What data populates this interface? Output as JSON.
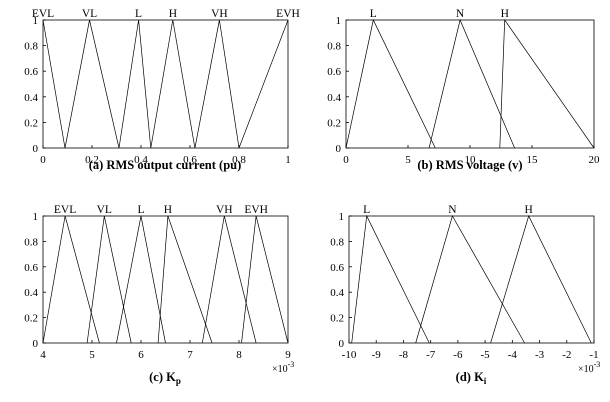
{
  "chart_data": [
    {
      "type": "line",
      "caption": "(a) RMS output current (pu)",
      "xlim": [
        0,
        1
      ],
      "ylim": [
        0,
        1
      ],
      "x_ticks": [
        "0",
        "0.2",
        "0.4",
        "0.6",
        "0.8",
        "1"
      ],
      "x_tick_values": [
        0,
        0.2,
        0.4,
        0.6,
        0.8,
        1
      ],
      "y_ticks": [
        "0",
        "0.2",
        "0.4",
        "0.6",
        "0.8",
        "1"
      ],
      "y_tick_values": [
        0,
        0.2,
        0.4,
        0.6,
        0.8,
        1
      ],
      "x_exponent": "",
      "series": [
        {
          "name": "EVL",
          "points": [
            [
              0,
              1
            ],
            [
              0.09,
              0
            ]
          ]
        },
        {
          "name": "VL",
          "points": [
            [
              0.09,
              0
            ],
            [
              0.19,
              1
            ],
            [
              0.31,
              0
            ]
          ]
        },
        {
          "name": "L",
          "points": [
            [
              0.31,
              0
            ],
            [
              0.39,
              1
            ],
            [
              0.44,
              0
            ]
          ]
        },
        {
          "name": "H",
          "points": [
            [
              0.44,
              0
            ],
            [
              0.53,
              1
            ],
            [
              0.62,
              0
            ]
          ]
        },
        {
          "name": "VH",
          "points": [
            [
              0.62,
              0
            ],
            [
              0.72,
              1
            ],
            [
              0.8,
              0
            ]
          ]
        },
        {
          "name": "EVH",
          "points": [
            [
              0.8,
              0
            ],
            [
              1,
              1
            ]
          ]
        }
      ]
    },
    {
      "type": "line",
      "caption": "(b) RMS voltage (v)",
      "xlim": [
        0,
        20
      ],
      "ylim": [
        0,
        1
      ],
      "x_ticks": [
        "0",
        "5",
        "10",
        "15",
        "20"
      ],
      "x_tick_values": [
        0,
        5,
        10,
        15,
        20
      ],
      "y_ticks": [
        "0",
        "0.2",
        "0.4",
        "0.6",
        "0.8",
        "1"
      ],
      "y_tick_values": [
        0,
        0.2,
        0.4,
        0.6,
        0.8,
        1
      ],
      "x_exponent": "",
      "series": [
        {
          "name": "L",
          "points": [
            [
              0,
              0
            ],
            [
              2.2,
              1
            ],
            [
              7.2,
              0
            ]
          ]
        },
        {
          "name": "N",
          "points": [
            [
              6.7,
              0
            ],
            [
              9.2,
              1
            ],
            [
              13.6,
              0
            ]
          ]
        },
        {
          "name": "H",
          "points": [
            [
              12.4,
              0
            ],
            [
              12.8,
              1
            ],
            [
              20,
              0
            ]
          ]
        }
      ]
    },
    {
      "type": "line",
      "caption": "(c) Kp",
      "xlim": [
        4,
        9
      ],
      "ylim": [
        0,
        1
      ],
      "x_ticks": [
        "4",
        "5",
        "6",
        "7",
        "8",
        "9"
      ],
      "x_tick_values": [
        4,
        5,
        6,
        7,
        8,
        9
      ],
      "y_ticks": [
        "0",
        "0.2",
        "0.4",
        "0.6",
        "0.8",
        "1"
      ],
      "y_tick_values": [
        0,
        0.2,
        0.4,
        0.6,
        0.8,
        1
      ],
      "x_exponent": "×10",
      "x_exponent_power": "-3",
      "series": [
        {
          "name": "EVL",
          "points": [
            [
              4,
              0
            ],
            [
              4.45,
              1
            ],
            [
              5.15,
              0
            ]
          ]
        },
        {
          "name": "VL",
          "points": [
            [
              4.9,
              0
            ],
            [
              5.25,
              1
            ],
            [
              5.8,
              0
            ]
          ]
        },
        {
          "name": "L",
          "points": [
            [
              5.5,
              0
            ],
            [
              6,
              1
            ],
            [
              6.5,
              0
            ]
          ]
        },
        {
          "name": "H",
          "points": [
            [
              6.35,
              0
            ],
            [
              6.55,
              1
            ],
            [
              7.45,
              0
            ]
          ]
        },
        {
          "name": "VH",
          "points": [
            [
              7.25,
              0
            ],
            [
              7.7,
              1
            ],
            [
              8.35,
              0
            ]
          ]
        },
        {
          "name": "EVH",
          "points": [
            [
              8.05,
              0
            ],
            [
              8.35,
              1
            ],
            [
              9,
              0
            ]
          ]
        }
      ]
    },
    {
      "type": "line",
      "caption": "(d) Ki",
      "xlim": [
        -10,
        -1
      ],
      "ylim": [
        0,
        1
      ],
      "x_ticks": [
        "-10",
        "-9",
        "-8",
        "-7",
        "-6",
        "-5",
        "-4",
        "-3",
        "-2",
        "-1"
      ],
      "x_tick_values": [
        -10,
        -9,
        -8,
        -7,
        -6,
        -5,
        -4,
        -3,
        -2,
        -1
      ],
      "y_ticks": [
        "0",
        "0.2",
        "0.4",
        "0.6",
        "0.8",
        "1"
      ],
      "y_tick_values": [
        0,
        0.2,
        0.4,
        0.6,
        0.8,
        1
      ],
      "x_exponent": "×10",
      "x_exponent_power": "-3",
      "series": [
        {
          "name": "L",
          "points": [
            [
              -9.9,
              0
            ],
            [
              -9.35,
              1
            ],
            [
              -7.05,
              0
            ]
          ]
        },
        {
          "name": "N",
          "points": [
            [
              -7.55,
              0
            ],
            [
              -6.2,
              1
            ],
            [
              -3.55,
              0
            ]
          ]
        },
        {
          "name": "H",
          "points": [
            [
              -4.8,
              0
            ],
            [
              -3.4,
              1
            ],
            [
              -1.1,
              0
            ]
          ]
        }
      ]
    }
  ]
}
